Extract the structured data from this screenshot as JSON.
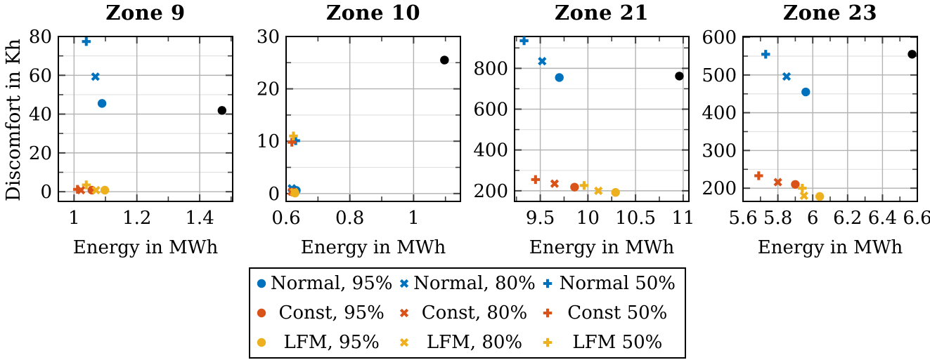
{
  "figure": {
    "ylabel": "Discomfort in Kh",
    "background": "#ffffff",
    "frame_color": "#000000",
    "grid_major_color": "#b3b3b3",
    "grid_minor_color": "#e2e2e2",
    "tick_color": "#404040"
  },
  "series": [
    {
      "key": "normal95",
      "legend_label": "Normal, 95%",
      "marker": "circle",
      "color": "#0072BD"
    },
    {
      "key": "normal80",
      "legend_label": "Normal, 80%",
      "marker": "x",
      "color": "#0072BD"
    },
    {
      "key": "normal50",
      "legend_label": "Normal 50%",
      "marker": "plus",
      "color": "#0072BD"
    },
    {
      "key": "const95",
      "legend_label": "Const, 95%",
      "marker": "circle",
      "color": "#D95319"
    },
    {
      "key": "const80",
      "legend_label": "Const, 80%",
      "marker": "x",
      "color": "#D95319"
    },
    {
      "key": "const50",
      "legend_label": "Const 50%",
      "marker": "plus",
      "color": "#D95319"
    },
    {
      "key": "lfm95",
      "legend_label": "LFM, 95%",
      "marker": "circle",
      "color": "#EDB120"
    },
    {
      "key": "lfm80",
      "legend_label": "LFM, 80%",
      "marker": "x",
      "color": "#EDB120"
    },
    {
      "key": "lfm50",
      "legend_label": "LFM 50%",
      "marker": "plus",
      "color": "#EDB120"
    },
    {
      "key": "baseline",
      "legend_label": null,
      "marker": "circle",
      "color": "#000000"
    }
  ],
  "legend": {
    "order": [
      "normal95",
      "normal80",
      "normal50",
      "const95",
      "const80",
      "const50",
      "lfm95",
      "lfm80",
      "lfm50"
    ]
  },
  "chart_data": [
    {
      "type": "scatter",
      "title": "Zone 9",
      "xlabel": "Energy in MWh",
      "xlim": [
        0.95,
        1.505
      ],
      "ylim": [
        -5,
        80
      ],
      "xticks": [
        [
          1,
          "1"
        ],
        [
          1.2,
          "1.2"
        ],
        [
          1.4,
          "1.4"
        ]
      ],
      "xminor": [
        1.1,
        1.3,
        1.5
      ],
      "yticks": [
        [
          0,
          "0"
        ],
        [
          20,
          "20"
        ],
        [
          40,
          "40"
        ],
        [
          60,
          "60"
        ],
        [
          80,
          "80"
        ]
      ],
      "yminor": [
        10,
        30,
        50,
        70
      ],
      "points": {
        "normal95": [
          1.089,
          45.5
        ],
        "normal80": [
          1.068,
          59.3
        ],
        "normal50": [
          1.039,
          77.4
        ],
        "const95": [
          1.057,
          0.8
        ],
        "const80": [
          1.022,
          0.8
        ],
        "const50": [
          1.011,
          1.2
        ],
        "lfm95": [
          1.098,
          0.8
        ],
        "lfm80": [
          1.07,
          0.8
        ],
        "lfm50": [
          1.039,
          3.5
        ],
        "baseline": [
          1.471,
          41.9
        ]
      }
    },
    {
      "type": "scatter",
      "title": "Zone 10",
      "xlabel": "Energy in MWh",
      "xlim": [
        0.6,
        1.147
      ],
      "ylim": [
        -1.5,
        30
      ],
      "xticks": [
        [
          0.6,
          "0.6"
        ],
        [
          0.8,
          "0.8"
        ],
        [
          1,
          "1"
        ]
      ],
      "xminor": [
        0.7,
        0.9,
        1.1
      ],
      "yticks": [
        [
          0,
          "0"
        ],
        [
          10,
          "10"
        ],
        [
          20,
          "20"
        ],
        [
          30,
          "30"
        ]
      ],
      "yminor": [
        5,
        15,
        25
      ],
      "points": {
        "normal95": [
          0.632,
          0.6
        ],
        "normal80": [
          0.618,
          1.0
        ],
        "normal50": [
          0.63,
          10.1
        ],
        "const95": [
          0.622,
          0.25
        ],
        "const80": [
          0.618,
          0.35
        ],
        "const50": [
          0.618,
          9.8
        ],
        "lfm95": [
          0.628,
          0.1
        ],
        "lfm80": [
          0.625,
          0.3
        ],
        "lfm50": [
          0.623,
          11.0
        ],
        "baseline": [
          1.097,
          25.5
        ]
      }
    },
    {
      "type": "scatter",
      "title": "Zone 21",
      "xlabel": "Energy in MWh",
      "xlim": [
        9.23,
        11.06
      ],
      "ylim": [
        148,
        956
      ],
      "xticks": [
        [
          9.5,
          "9.5"
        ],
        [
          10,
          "10"
        ],
        [
          10.5,
          "10.5"
        ],
        [
          11,
          "11"
        ]
      ],
      "xminor": [
        9.25,
        9.75,
        10.25,
        10.75
      ],
      "yticks": [
        [
          200,
          "200"
        ],
        [
          400,
          "400"
        ],
        [
          600,
          "600"
        ],
        [
          800,
          "800"
        ]
      ],
      "yminor": [
        300,
        500,
        700,
        900
      ],
      "points": {
        "normal95": [
          9.7,
          755
        ],
        "normal80": [
          9.52,
          835
        ],
        "normal50": [
          9.33,
          935
        ],
        "const95": [
          9.86,
          218
        ],
        "const80": [
          9.65,
          235
        ],
        "const50": [
          9.45,
          255
        ],
        "lfm95": [
          10.29,
          192
        ],
        "lfm80": [
          10.11,
          200
        ],
        "lfm50": [
          9.96,
          226
        ],
        "baseline": [
          10.96,
          762
        ]
      }
    },
    {
      "type": "scatter",
      "title": "Zone 23",
      "xlabel": "Energy in MWh",
      "xlim": [
        5.6,
        6.6
      ],
      "ylim": [
        165,
        602
      ],
      "xticks": [
        [
          5.6,
          "5.6"
        ],
        [
          5.8,
          "5.8"
        ],
        [
          6,
          "6"
        ],
        [
          6.2,
          "6.2"
        ],
        [
          6.4,
          "6.4"
        ],
        [
          6.6,
          "6.6"
        ]
      ],
      "xminor": [
        5.7,
        5.9,
        6.1,
        6.3,
        6.5
      ],
      "yticks": [
        [
          200,
          "200"
        ],
        [
          300,
          "300"
        ],
        [
          400,
          "400"
        ],
        [
          500,
          "500"
        ],
        [
          600,
          "600"
        ]
      ],
      "yminor": [
        250,
        350,
        450,
        550
      ],
      "points": {
        "normal95": [
          5.96,
          455
        ],
        "normal80": [
          5.85,
          496
        ],
        "normal50": [
          5.73,
          555
        ],
        "const95": [
          5.9,
          210
        ],
        "const80": [
          5.8,
          216
        ],
        "const50": [
          5.69,
          233
        ],
        "lfm95": [
          6.04,
          178
        ],
        "lfm80": [
          5.95,
          180
        ],
        "lfm50": [
          5.94,
          200
        ],
        "baseline": [
          6.57,
          555
        ]
      }
    }
  ]
}
